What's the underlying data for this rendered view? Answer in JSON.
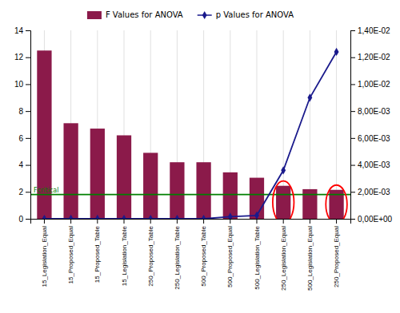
{
  "chart_data": {
    "type": "bar",
    "categories": [
      "15_Legislation_Equal",
      "15_Proposed_Equal",
      "15_Proposed_Table",
      "15_Legislation_Table",
      "250_Proposed_Table",
      "250_Legislation_Table",
      "500_Proposed_Table",
      "500_Proposed_Equal",
      "500_Legislation_Table",
      "250_Legislation_Equal",
      "500_Legislation_Equal",
      "250_Proposed_Equal"
    ],
    "series": [
      {
        "name": "F Values for ANOVA",
        "type": "bar",
        "color": "#8B1A4A",
        "values": [
          12.5,
          7.1,
          6.7,
          6.2,
          4.9,
          4.2,
          4.2,
          3.45,
          3.05,
          2.45,
          2.2,
          2.15
        ]
      },
      {
        "name": "p Values for ANOVA",
        "type": "line",
        "color": "#1a1a8c",
        "marker": "diamond",
        "axis": "y2",
        "values": [
          5e-07,
          5e-06,
          2e-06,
          1e-06,
          8e-07,
          4e-07,
          3e-07,
          0.00015,
          0.00025,
          0.0036,
          0.009,
          0.0124
        ]
      }
    ],
    "ylim": [
      0,
      14
    ],
    "yticks": [
      0,
      2,
      4,
      6,
      8,
      10,
      12,
      14
    ],
    "y2lim": [
      0,
      0.014
    ],
    "y2ticks": [
      {
        "value": 0,
        "label": "0,00E+00"
      },
      {
        "value": 0.002,
        "label": "2,00E-03"
      },
      {
        "value": 0.004,
        "label": "4,00E-03"
      },
      {
        "value": 0.006,
        "label": "6,00E-03"
      },
      {
        "value": 0.008,
        "label": "8,00E-03"
      },
      {
        "value": 0.01,
        "label": "1,00E-02"
      },
      {
        "value": 0.012,
        "label": "1,20E-02"
      },
      {
        "value": 0.014,
        "label": "1,40E-02"
      }
    ],
    "annotations": [
      {
        "text": "Fcritical",
        "y": 1.8,
        "color": "#008000"
      },
      {
        "shape": "ellipse",
        "category": "250_Legislation_Equal",
        "color": "red"
      },
      {
        "shape": "ellipse",
        "category": "250_Proposed_Equal",
        "color": "red"
      }
    ],
    "grid": "x",
    "legend": "top"
  }
}
